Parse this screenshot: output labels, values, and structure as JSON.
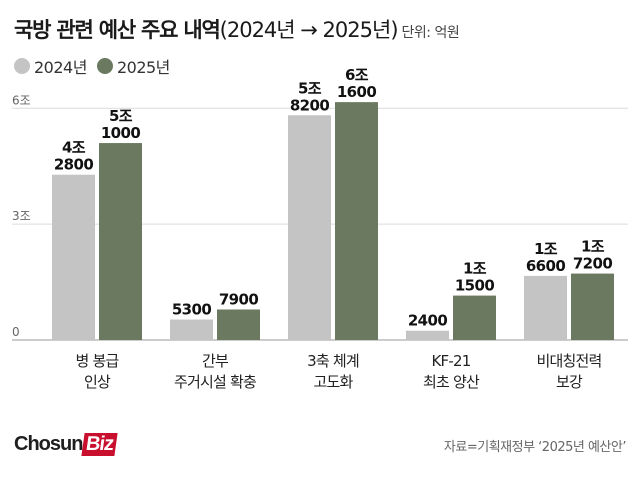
{
  "header": {
    "title_main": "국방 관련 예산 주요 내역",
    "title_paren": "(2024년 → 2025년)",
    "unit": "단위: 억원"
  },
  "legend": [
    {
      "label": "2024년",
      "color": "#c4c4c4"
    },
    {
      "label": "2025년",
      "color": "#6b7960"
    }
  ],
  "chart_data": {
    "type": "bar",
    "title": "국방 관련 예산 주요 내역(2024년 → 2025년)",
    "unit": "단위: 억원",
    "categories": [
      [
        "병 봉급",
        "인상"
      ],
      [
        "간부",
        "주거시설 확충"
      ],
      [
        "3축 체계",
        "고도화"
      ],
      [
        "KF-21",
        "최초 양산"
      ],
      [
        "비대칭전력",
        "보강"
      ]
    ],
    "series": [
      {
        "name": "2024년",
        "color": "#c4c4c4",
        "values": [
          42800,
          5300,
          58200,
          2400,
          16600
        ],
        "labels": [
          [
            "4조",
            "2800"
          ],
          [
            "5300"
          ],
          [
            "5조",
            "8200"
          ],
          [
            "2400"
          ],
          [
            "1조",
            "6600"
          ]
        ]
      },
      {
        "name": "2025년",
        "color": "#6b7960",
        "values": [
          51000,
          7900,
          61600,
          11500,
          17200
        ],
        "labels": [
          [
            "5조",
            "1000"
          ],
          [
            "7900"
          ],
          [
            "6조",
            "1600"
          ],
          [
            "1조",
            "1500"
          ],
          [
            "1조",
            "7200"
          ]
        ]
      }
    ],
    "yticks": [
      {
        "value": 0,
        "label": "0"
      },
      {
        "value": 30000,
        "label": "3조"
      },
      {
        "value": 60000,
        "label": "6조"
      }
    ],
    "ylim": [
      0,
      65000
    ],
    "grid": true
  },
  "footer": {
    "logo_a": "Chosun",
    "logo_b": "Biz",
    "source": "자료=기획재정부 ‘2025년 예산안’"
  }
}
